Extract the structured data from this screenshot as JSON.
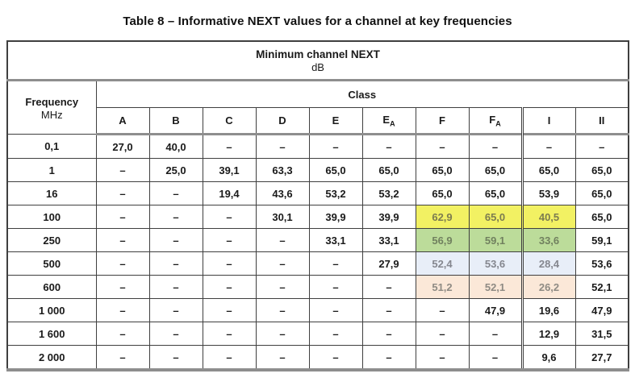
{
  "title": "Table 8 – Informative NEXT values for a channel at key frequencies",
  "table": {
    "title": "Minimum channel NEXT",
    "unit": "dB",
    "frequency_label": "Frequency",
    "frequency_unit": "MHz",
    "class_label": "Class",
    "columns": [
      {
        "base": "A",
        "sub": ""
      },
      {
        "base": "B",
        "sub": ""
      },
      {
        "base": "C",
        "sub": ""
      },
      {
        "base": "D",
        "sub": ""
      },
      {
        "base": "E",
        "sub": ""
      },
      {
        "base": "E",
        "sub": "A"
      },
      {
        "base": "F",
        "sub": ""
      },
      {
        "base": "F",
        "sub": "A"
      },
      {
        "base": "I",
        "sub": ""
      },
      {
        "base": "II",
        "sub": ""
      }
    ],
    "rows": [
      {
        "frequency": "0,1",
        "values": [
          "27,0",
          "40,0",
          "–",
          "–",
          "–",
          "–",
          "–",
          "–",
          "–",
          "–"
        ],
        "highlight": null
      },
      {
        "frequency": "1",
        "values": [
          "–",
          "25,0",
          "39,1",
          "63,3",
          "65,0",
          "65,0",
          "65,0",
          "65,0",
          "65,0",
          "65,0"
        ],
        "highlight": null
      },
      {
        "frequency": "16",
        "values": [
          "–",
          "–",
          "19,4",
          "43,6",
          "53,2",
          "53,2",
          "65,0",
          "65,0",
          "53,9",
          "65,0"
        ],
        "highlight": null
      },
      {
        "frequency": "100",
        "values": [
          "–",
          "–",
          "–",
          "30,1",
          "39,9",
          "39,9",
          "62,9",
          "65,0",
          "40,5",
          "65,0"
        ],
        "highlight": "yellow"
      },
      {
        "frequency": "250",
        "values": [
          "–",
          "–",
          "–",
          "–",
          "33,1",
          "33,1",
          "56,9",
          "59,1",
          "33,6",
          "59,1"
        ],
        "highlight": "green"
      },
      {
        "frequency": "500",
        "values": [
          "–",
          "–",
          "–",
          "–",
          "–",
          "27,9",
          "52,4",
          "53,6",
          "28,4",
          "53,6"
        ],
        "highlight": "blue"
      },
      {
        "frequency": "600",
        "values": [
          "–",
          "–",
          "–",
          "–",
          "–",
          "–",
          "51,2",
          "52,1",
          "26,2",
          "52,1"
        ],
        "highlight": "peach"
      },
      {
        "frequency": "1 000",
        "values": [
          "–",
          "–",
          "–",
          "–",
          "–",
          "–",
          "–",
          "47,9",
          "19,6",
          "47,9"
        ],
        "highlight": null
      },
      {
        "frequency": "1 600",
        "values": [
          "–",
          "–",
          "–",
          "–",
          "–",
          "–",
          "–",
          "–",
          "12,9",
          "31,5"
        ],
        "highlight": null
      },
      {
        "frequency": "2 000",
        "values": [
          "–",
          "–",
          "–",
          "–",
          "–",
          "–",
          "–",
          "–",
          "9,6",
          "27,7"
        ],
        "highlight": null
      }
    ],
    "highlight_columns": [
      6,
      7,
      8
    ],
    "highlight_styles": {
      "yellow": {
        "bg": "#f2f163",
        "text": "#7c7c50"
      },
      "green": {
        "bg": "#bcdc9a",
        "text": "#71815f"
      },
      "blue": {
        "bg": "#e8eef8",
        "text": "#85878f"
      },
      "peach": {
        "bg": "#fbe8d8",
        "text": "#8f8b84"
      }
    }
  }
}
